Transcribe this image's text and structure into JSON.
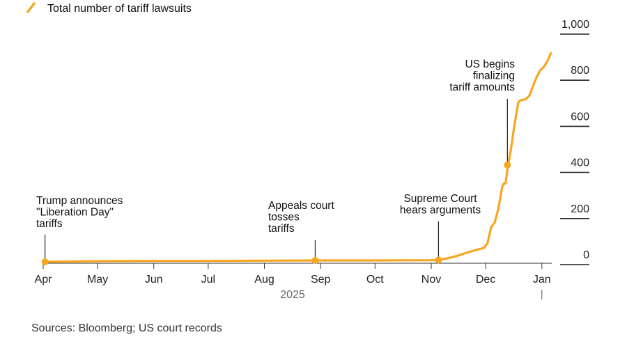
{
  "chart_data": {
    "type": "line",
    "legend": {
      "label": "Total number of tariff lawsuits",
      "placement": "top-left"
    },
    "series": [
      {
        "name": "Total number of tariff lawsuits",
        "color": "#f6a623",
        "points": [
          {
            "x": "2025-04-02",
            "y": 0
          },
          {
            "x": "2025-05-01",
            "y": 3
          },
          {
            "x": "2025-06-01",
            "y": 4
          },
          {
            "x": "2025-07-01",
            "y": 4
          },
          {
            "x": "2025-08-01",
            "y": 5
          },
          {
            "x": "2025-09-01",
            "y": 6
          },
          {
            "x": "2025-10-01",
            "y": 6
          },
          {
            "x": "2025-11-01",
            "y": 7
          },
          {
            "x": "2025-11-05",
            "y": 8
          },
          {
            "x": "2025-11-10",
            "y": 15
          },
          {
            "x": "2025-11-15",
            "y": 25
          },
          {
            "x": "2025-11-20",
            "y": 38
          },
          {
            "x": "2025-11-25",
            "y": 50
          },
          {
            "x": "2025-11-30",
            "y": 60
          },
          {
            "x": "2025-12-02",
            "y": 80
          },
          {
            "x": "2025-12-04",
            "y": 150
          },
          {
            "x": "2025-12-06",
            "y": 170
          },
          {
            "x": "2025-12-08",
            "y": 230
          },
          {
            "x": "2025-12-10",
            "y": 320
          },
          {
            "x": "2025-12-11",
            "y": 340
          },
          {
            "x": "2025-12-12",
            "y": 340
          },
          {
            "x": "2025-12-13",
            "y": 400
          },
          {
            "x": "2025-12-15",
            "y": 490
          },
          {
            "x": "2025-12-17",
            "y": 600
          },
          {
            "x": "2025-12-19",
            "y": 690
          },
          {
            "x": "2025-12-20",
            "y": 700
          },
          {
            "x": "2025-12-23",
            "y": 705
          },
          {
            "x": "2025-12-25",
            "y": 720
          },
          {
            "x": "2025-12-27",
            "y": 760
          },
          {
            "x": "2025-12-29",
            "y": 800
          },
          {
            "x": "2025-12-31",
            "y": 830
          },
          {
            "x": "2026-01-02",
            "y": 845
          },
          {
            "x": "2026-01-04",
            "y": 870
          },
          {
            "x": "2026-01-06",
            "y": 905
          }
        ]
      }
    ],
    "x_axis": {
      "scale": "time",
      "range": [
        "2025-04-01",
        "2026-01-08"
      ],
      "ticks": [
        {
          "date": "2025-04-01",
          "label": "Apr"
        },
        {
          "date": "2025-05-01",
          "label": "May"
        },
        {
          "date": "2025-06-01",
          "label": "Jun"
        },
        {
          "date": "2025-07-01",
          "label": "Jul"
        },
        {
          "date": "2025-08-01",
          "label": "Aug"
        },
        {
          "date": "2025-09-01",
          "label": "Sep"
        },
        {
          "date": "2025-10-01",
          "label": "Oct"
        },
        {
          "date": "2025-11-01",
          "label": "Nov"
        },
        {
          "date": "2025-12-01",
          "label": "Dec"
        },
        {
          "date": "2026-01-01",
          "label": "Jan"
        }
      ],
      "year_label": "2025"
    },
    "y_axis": {
      "range": [
        0,
        1000
      ],
      "ticks": [
        {
          "value": 0,
          "label": "0"
        },
        {
          "value": 200,
          "label": "200"
        },
        {
          "value": 400,
          "label": "400"
        },
        {
          "value": 600,
          "label": "600"
        },
        {
          "value": 800,
          "label": "800"
        },
        {
          "value": 1000,
          "label": "1,000"
        }
      ],
      "position": "right"
    },
    "annotations": [
      {
        "id": "liberation",
        "date": "2025-04-02",
        "value": 0,
        "lines": [
          "Trump announces",
          "\"Liberation Day\"",
          "tariffs"
        ]
      },
      {
        "id": "appeals",
        "date": "2025-08-29",
        "value": 6,
        "lines": [
          "Appeals court",
          "tosses",
          "tariffs"
        ]
      },
      {
        "id": "supreme",
        "date": "2025-11-05",
        "value": 8,
        "lines": [
          "Supreme Court",
          "hears arguments"
        ]
      },
      {
        "id": "finalizing",
        "date": "2025-12-13",
        "value": 420,
        "lines": [
          "US begins",
          "finalizing",
          "tariff amounts"
        ]
      }
    ]
  },
  "source": "Sources: Bloomberg; US court records"
}
